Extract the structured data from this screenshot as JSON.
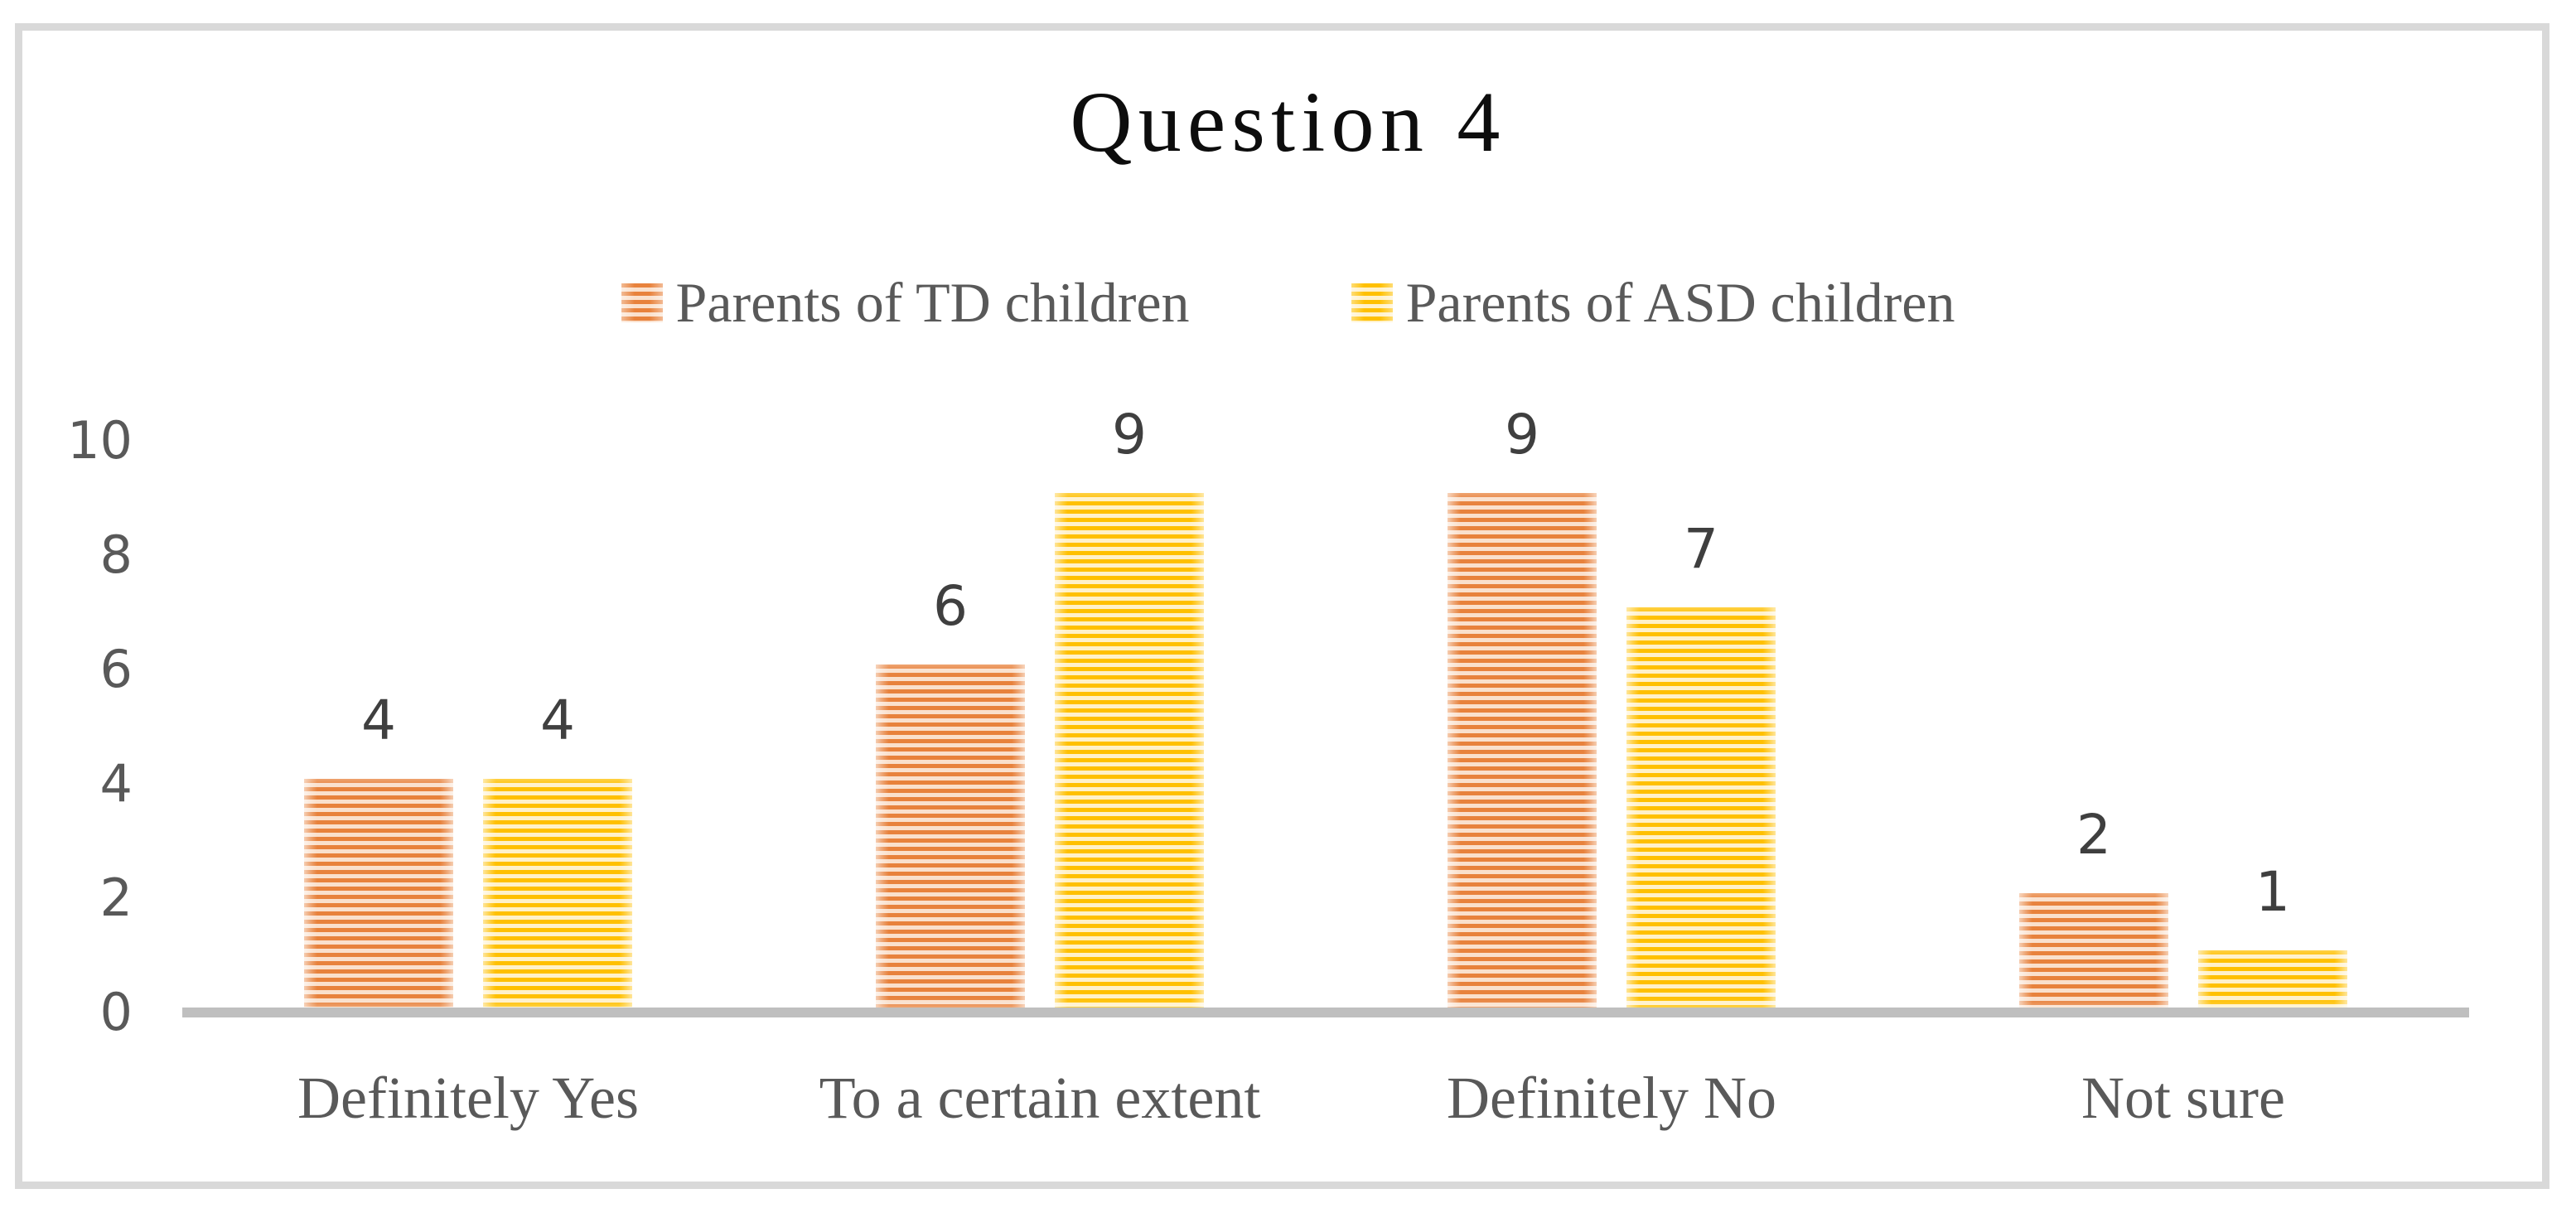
{
  "chart_data": {
    "type": "bar",
    "title": "Question 4",
    "categories": [
      "Definitely Yes",
      "To a certain extent",
      "Definitely No",
      "Not sure"
    ],
    "series": [
      {
        "name": "Parents of TD children",
        "values": [
          4,
          6,
          9,
          2
        ],
        "stripe_color": "#E8823C",
        "fill_color": "#FAE0CC"
      },
      {
        "name": "Parents of ASD children",
        "values": [
          4,
          9,
          7,
          1
        ],
        "stripe_color": "#FFC000",
        "fill_color": "#FFF1C9"
      }
    ],
    "ylabel": "",
    "xlabel": "",
    "ylim": [
      0,
      10
    ],
    "yticks": [
      0,
      2,
      4,
      6,
      8,
      10
    ],
    "grid": false,
    "legend_position": "top-center",
    "bar_pattern": "horizontal-stripes",
    "axis_line_color": "#BFBFBF",
    "frame_border_color": "#D9D9D9",
    "tick_text_color": "#595959",
    "category_text_color": "#595959",
    "value_label_color": "#3F3F3F",
    "title_color": "#0D0D0D"
  }
}
